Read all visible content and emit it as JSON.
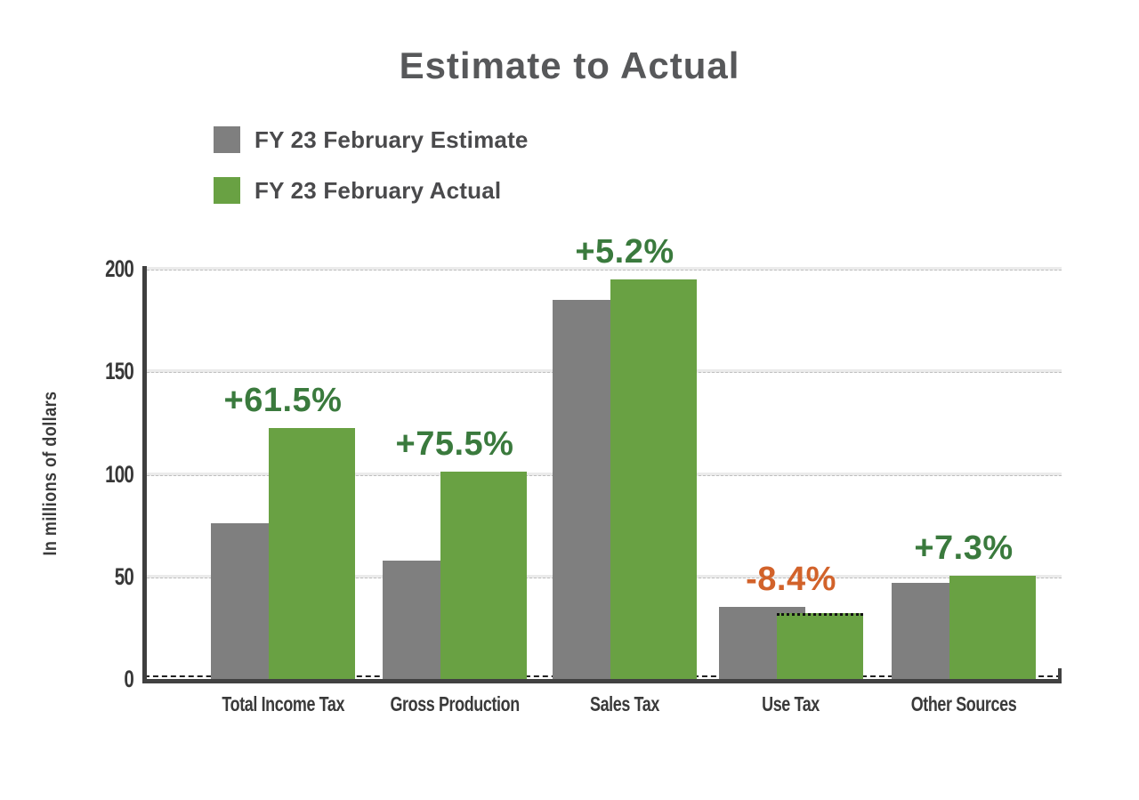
{
  "chart": {
    "title": "Estimate to Actual",
    "ylabel": "In millions of dollars",
    "legend": [
      {
        "label": "FY 23 February Estimate",
        "color": "#7f7f7f"
      },
      {
        "label": "FY 23 February Actual",
        "color": "#69a143"
      }
    ]
  },
  "chart_data": {
    "type": "bar",
    "title": "Estimate to Actual",
    "ylabel": "In millions of dollars",
    "categories": [
      "Total Income Tax",
      "Gross Production",
      "Sales Tax",
      "Use Tax",
      "Other Sources"
    ],
    "series": [
      {
        "name": "FY 23 February Estimate",
        "color": "#7f7f7f",
        "values": [
          75.8,
          57.5,
          185.0,
          35.0,
          46.8
        ]
      },
      {
        "name": "FY 23 February Actual",
        "color": "#69a143",
        "values": [
          122.4,
          100.9,
          194.6,
          32.1,
          50.2
        ]
      }
    ],
    "annotations": [
      {
        "label": "+61.5%",
        "color": "#3a7a3d"
      },
      {
        "label": "+75.5%",
        "color": "#3a7a3d"
      },
      {
        "label": "+5.2%",
        "color": "#3a7a3d"
      },
      {
        "label": "-8.4%",
        "color": "#d2622a"
      },
      {
        "label": "+7.3%",
        "color": "#3a7a3d"
      }
    ],
    "yticks": [
      0,
      50,
      100,
      150,
      200
    ],
    "ylim": [
      0,
      200
    ],
    "grid": "horizontal-dashed",
    "legend_position": "top-left",
    "colors": {
      "positive": "#3a7a3d",
      "negative": "#d2622a"
    }
  }
}
